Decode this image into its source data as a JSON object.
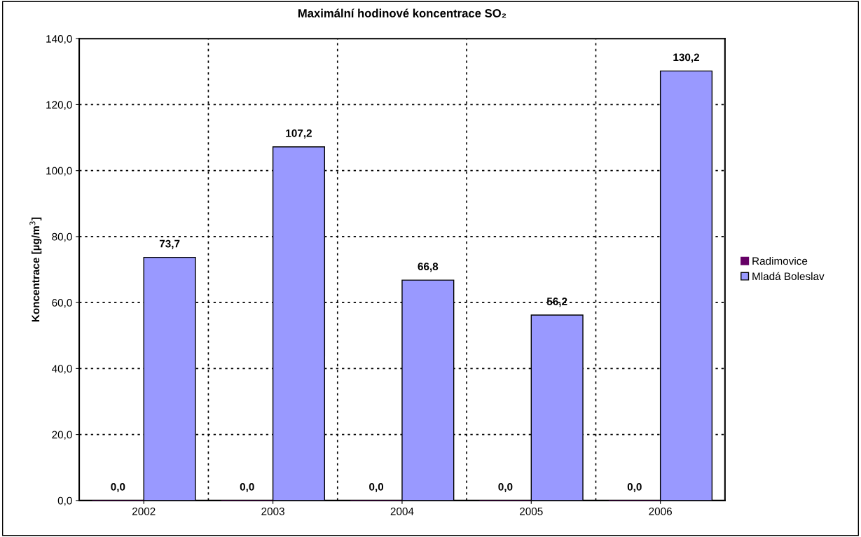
{
  "chart_data": {
    "type": "bar",
    "title": "Maximální hodinové koncentrace SO₂",
    "ylabel": "Koncentrace [µg/m$^{3}$]",
    "categories": [
      "2002",
      "2003",
      "2004",
      "2005",
      "2006"
    ],
    "series": [
      {
        "name": "Radimovice",
        "color": "#660066",
        "values": [
          0,
          0,
          0,
          0,
          0
        ],
        "value_labels": [
          "0,0",
          "0,0",
          "0,0",
          "0,0",
          "0,0"
        ]
      },
      {
        "name": "Mladá Boleslav",
        "color": "#9999ff",
        "values": [
          73.7,
          107.2,
          66.8,
          56.2,
          130.2
        ],
        "value_labels": [
          "73,7",
          "107,2",
          "66,8",
          "56,2",
          "130,2"
        ]
      }
    ],
    "ylim": [
      0,
      140
    ],
    "yticks": [
      {
        "value": 0,
        "label": "0,0"
      },
      {
        "value": 20,
        "label": "20,0"
      },
      {
        "value": 40,
        "label": "40,0"
      },
      {
        "value": 60,
        "label": "60,0"
      },
      {
        "value": 80,
        "label": "80,0"
      },
      {
        "value": 100,
        "label": "100,0"
      },
      {
        "value": 120,
        "label": "120,0"
      },
      {
        "value": 140,
        "label": "140,0"
      }
    ],
    "grid": true,
    "legend": "right"
  }
}
